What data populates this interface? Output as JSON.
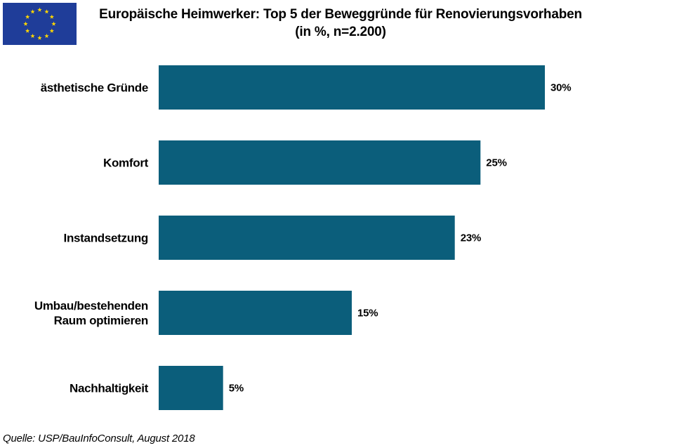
{
  "chart_data": {
    "type": "bar",
    "orientation": "horizontal",
    "title": "Europäische Heimwerker: Top 5 der Beweggründe für Renovierungsvorhaben",
    "subtitle": "(in %, n=2.200)",
    "categories": [
      [
        "ästhetische Gründe"
      ],
      [
        "Komfort"
      ],
      [
        "Instandsetzung"
      ],
      [
        "Umbau/bestehenden",
        "Raum optimieren"
      ],
      [
        "Nachhaltigkeit"
      ]
    ],
    "values": [
      30,
      25,
      23,
      15,
      5
    ],
    "value_labels": [
      "30%",
      "25%",
      "23%",
      "15%",
      "5%"
    ],
    "xlim": [
      0,
      30
    ],
    "grid": false,
    "legend": "none",
    "bar_color": "#0b5e7b"
  },
  "source": "Quelle: USP/BauInfoConsult, August 2018",
  "logo": {
    "icon": "eu-flag-icon",
    "background_color": "#1f3d99",
    "star_color": "#ffd700",
    "star_count": 12
  }
}
